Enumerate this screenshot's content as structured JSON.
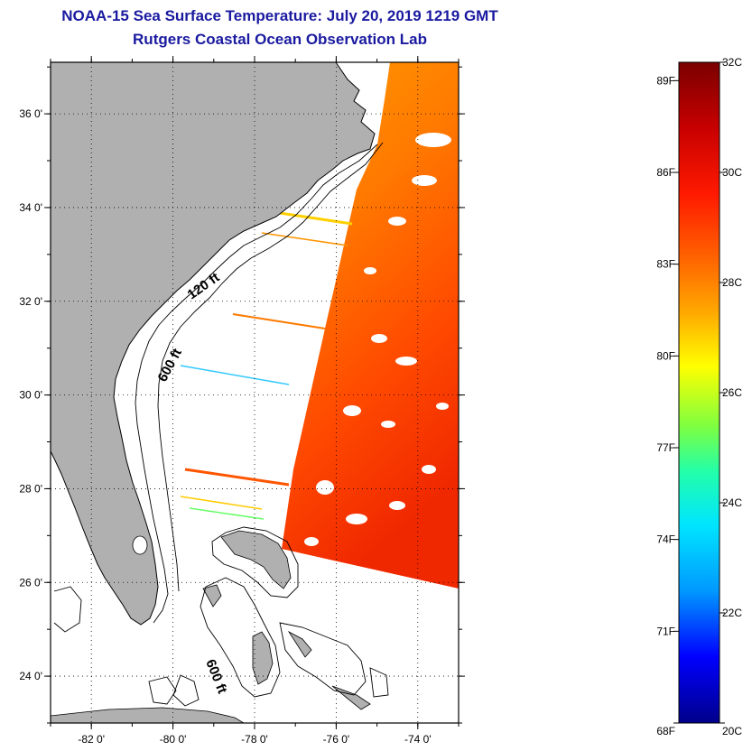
{
  "header": {
    "title": "NOAA-15 Sea Surface Temperature:  July 20, 2019 1219 GMT",
    "subtitle": "Rutgers Coastal Ocean Observation Lab"
  },
  "map": {
    "lat_labels": [
      "36 0'",
      "34 0'",
      "32 0'",
      "30 0'",
      "28 0'",
      "26 0'",
      "24 0'"
    ],
    "lat_values": [
      36,
      34,
      32,
      30,
      28,
      26,
      24
    ],
    "lon_labels": [
      "-82 0'",
      "-80 0'",
      "-78 0'",
      "-76 0'",
      "-74 0'"
    ],
    "lon_values": [
      -82,
      -80,
      -78,
      -76,
      -74
    ],
    "lat_range": [
      23,
      37.1
    ],
    "lon_range": [
      -83,
      -73
    ],
    "contours": {
      "shelf": "120 ft",
      "slope": "600 ft",
      "bahamas": "600 ft"
    },
    "land_color": "#b0b0b0"
  },
  "colorbar": {
    "fahrenheit_labels": [
      "89F",
      "86F",
      "83F",
      "80F",
      "77F",
      "74F",
      "71F",
      "68F"
    ],
    "fahrenheit_values": [
      89,
      86,
      83,
      80,
      77,
      74,
      71,
      68
    ],
    "celsius_labels": [
      "32C",
      "30C",
      "28C",
      "26C",
      "24C",
      "22C",
      "20C"
    ],
    "celsius_values": [
      32,
      30,
      28,
      26,
      24,
      22,
      20
    ],
    "range_c": [
      20,
      32
    ]
  }
}
